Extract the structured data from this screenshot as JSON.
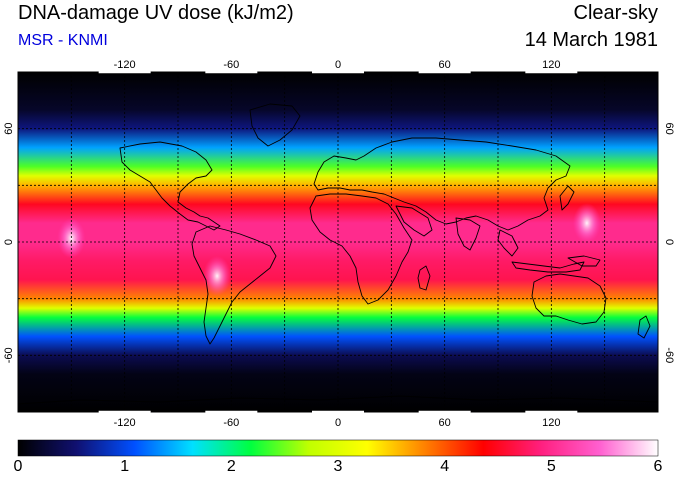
{
  "header": {
    "title": "DNA-damage UV dose (kJ/m2)",
    "subtitle": "MSR - KNMI",
    "sky_condition": "Clear-sky",
    "date": "14 March 1981"
  },
  "colors": {
    "subtitle": "#0000dd",
    "ocean_background": "#000010",
    "coastline": "#000000",
    "colormap": [
      "#000000",
      "#101070",
      "#0050ff",
      "#00e0ff",
      "#00ff40",
      "#c0ff00",
      "#ffff00",
      "#ff8000",
      "#ff0000",
      "#ff2080",
      "#ff60d0",
      "#ffffff"
    ]
  },
  "map": {
    "projection": "equirectangular",
    "lon_range": [
      -180,
      180
    ],
    "lat_range": [
      -90,
      90
    ],
    "lon_ticks": [
      -120,
      -60,
      0,
      60,
      120
    ],
    "lat_ticks": [
      -60,
      0,
      60
    ],
    "lon_tick_labels": [
      "-120",
      "-60",
      "0",
      "60",
      "120"
    ],
    "lat_tick_labels": [
      "-60",
      "0",
      "60"
    ],
    "grid": "dashed, every 30 degrees",
    "dose_profile_by_latitude": [
      {
        "lat": 90,
        "dose": 0.0
      },
      {
        "lat": 70,
        "dose": 0.2
      },
      {
        "lat": 60,
        "dose": 0.6
      },
      {
        "lat": 50,
        "dose": 1.4
      },
      {
        "lat": 40,
        "dose": 2.4
      },
      {
        "lat": 35,
        "dose": 3.0
      },
      {
        "lat": 30,
        "dose": 3.6
      },
      {
        "lat": 20,
        "dose": 4.5
      },
      {
        "lat": 10,
        "dose": 5.0
      },
      {
        "lat": 0,
        "dose": 5.0
      },
      {
        "lat": -10,
        "dose": 4.8
      },
      {
        "lat": -20,
        "dose": 4.7
      },
      {
        "lat": -30,
        "dose": 3.8
      },
      {
        "lat": -35,
        "dose": 3.0
      },
      {
        "lat": -40,
        "dose": 2.2
      },
      {
        "lat": -50,
        "dose": 1.1
      },
      {
        "lat": -60,
        "dose": 0.4
      },
      {
        "lat": -70,
        "dose": 0.1
      },
      {
        "lat": -90,
        "dose": 0.0
      }
    ],
    "hotspots": [
      {
        "region": "Andes",
        "lon": -68,
        "lat": -18,
        "dose": 6.0
      },
      {
        "region": "Pacific",
        "lon": -150,
        "lat": 2,
        "dose": 5.6
      },
      {
        "region": "New Guinea",
        "lon": 140,
        "lat": 10,
        "dose": 5.8
      }
    ]
  },
  "colorbar": {
    "min": 0,
    "max": 6,
    "tick_labels": [
      "0",
      "1",
      "2",
      "3",
      "4",
      "5",
      "6"
    ]
  }
}
